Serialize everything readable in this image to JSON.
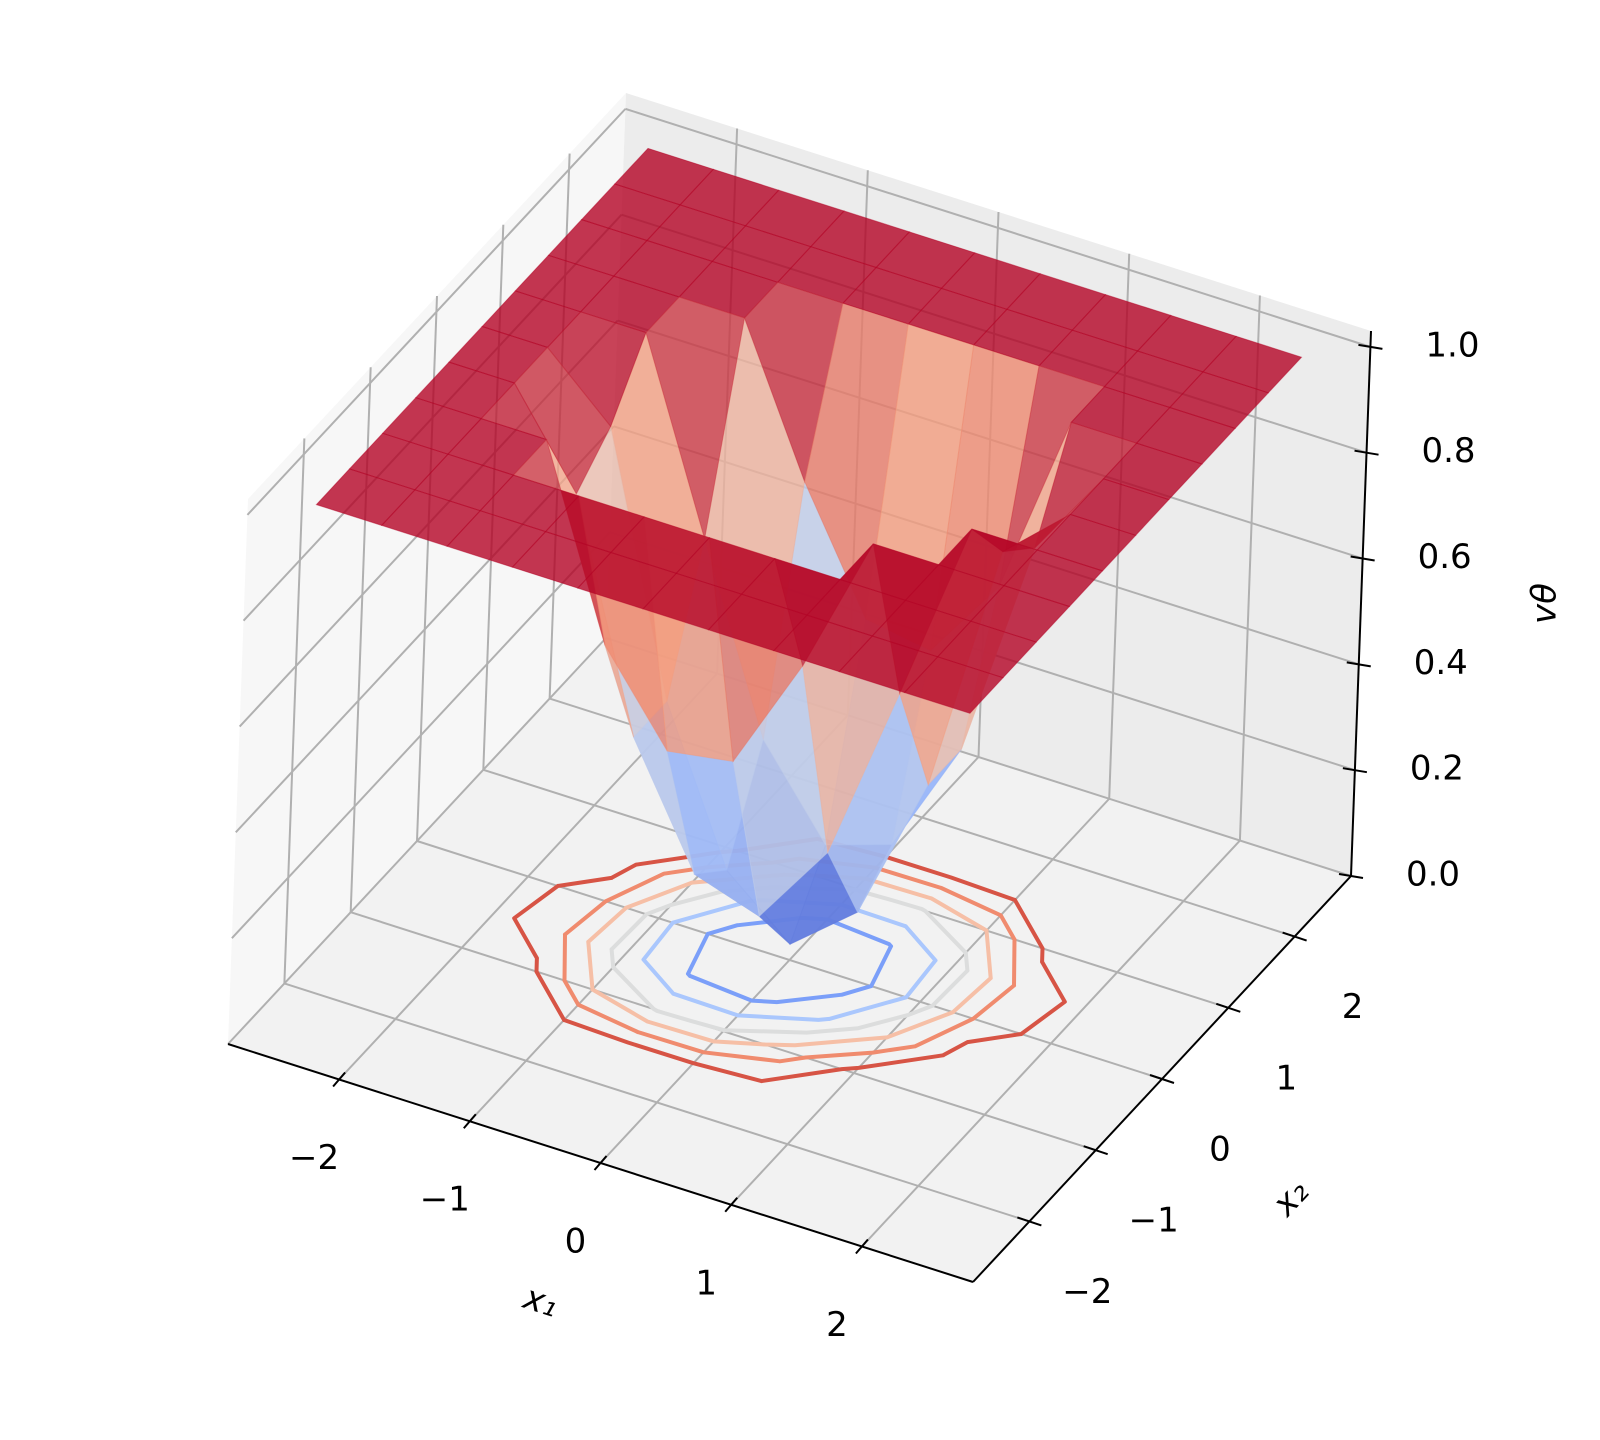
{
  "chart_data": {
    "type": "surface3d",
    "xlabel": "x₁",
    "ylabel": "x₂",
    "zlabel": "vθ",
    "colormap": "coolwarm",
    "xlim": [
      -2.85,
      2.85
    ],
    "ylim": [
      -2.85,
      2.85
    ],
    "zlim": [
      0,
      1.03
    ],
    "xticks": [
      {
        "value": -2,
        "label": "−2"
      },
      {
        "value": -1,
        "label": "−1"
      },
      0,
      1,
      2
    ],
    "yticks": [
      {
        "value": -2,
        "label": "−2"
      },
      {
        "value": -1,
        "label": "−1"
      },
      0,
      1,
      2
    ],
    "zticks": [
      {
        "value": 0,
        "label": "0.0"
      },
      0.2,
      0.4,
      0.6,
      0.8,
      {
        "value": 1,
        "label": "1.0"
      }
    ],
    "grid": true,
    "x1": [
      -2.5,
      -2,
      -1.5,
      -1,
      -0.5,
      0,
      0.5,
      1,
      1.5,
      2,
      2.5
    ],
    "x2": [
      -2.5,
      -2,
      -1.5,
      -1,
      -0.5,
      0,
      0.5,
      1,
      1.5,
      2,
      2.5
    ],
    "z": [
      [
        1,
        1,
        1,
        1,
        1,
        1,
        1,
        1,
        1,
        1,
        1
      ],
      [
        1,
        1,
        1,
        1,
        1,
        1,
        1,
        1,
        1,
        1,
        1
      ],
      [
        1,
        1,
        1,
        1,
        1,
        1,
        1,
        1,
        1,
        1,
        1
      ],
      [
        1,
        1,
        1,
        0.65,
        0.49,
        0.51,
        0.73,
        1,
        1,
        1,
        1
      ],
      [
        1,
        1,
        0.83,
        0.41,
        0.19,
        0.15,
        0.31,
        0.65,
        1,
        1,
        1
      ],
      [
        1,
        1,
        0.89,
        0.41,
        0.13,
        0.03,
        0.13,
        0.41,
        0.89,
        1,
        1
      ],
      [
        1,
        1,
        1,
        0.65,
        0.31,
        0.15,
        0.19,
        0.41,
        0.83,
        1,
        1
      ],
      [
        1,
        1,
        1,
        1,
        0.73,
        0.51,
        0.49,
        0.65,
        1,
        1,
        1
      ],
      [
        1,
        1,
        1,
        1,
        1,
        1,
        1,
        1,
        1,
        1,
        1
      ],
      [
        1,
        1,
        1,
        1,
        1,
        1,
        1,
        1,
        1,
        1,
        1
      ],
      [
        1,
        1,
        1,
        1,
        1,
        1,
        1,
        1,
        1,
        1,
        1
      ]
    ],
    "contour_levels": [
      0.2,
      0.35,
      0.5,
      0.65,
      0.8,
      0.95
    ],
    "contour_colors": [
      "#7b9ff9",
      "#aac7fd",
      "#dcdddd",
      "#f6bfa6",
      "#f08b6e",
      "#d75445"
    ]
  }
}
